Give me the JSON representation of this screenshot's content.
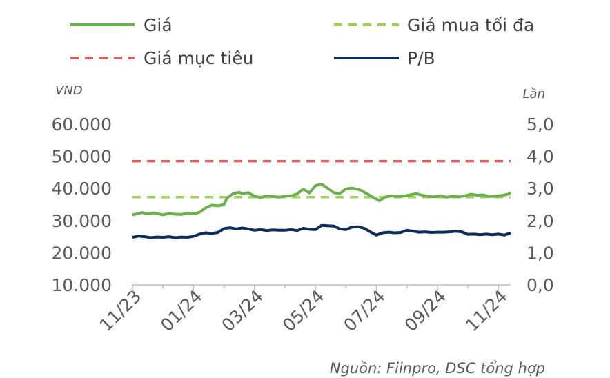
{
  "chart_data": {
    "type": "line",
    "legend": [
      {
        "label": "Giá",
        "color": "#6ab04c",
        "style": "solid"
      },
      {
        "label": "Giá mua tối đa",
        "color": "#9bd255",
        "style": "dashed"
      },
      {
        "label": "Giá mục tiêu",
        "color": "#e05a5a",
        "style": "dashed"
      },
      {
        "label": "P/B",
        "color": "#0d2b5c",
        "style": "solid"
      }
    ],
    "left_axis": {
      "unit": "VND",
      "min": 10000,
      "max": 60000,
      "ticks": [
        "60.000",
        "50.000",
        "40.000",
        "30.000",
        "20.000",
        "10.000"
      ],
      "tick_values": [
        60000,
        50000,
        40000,
        30000,
        20000,
        10000
      ]
    },
    "right_axis": {
      "unit": "Lần",
      "min": 0,
      "max": 5,
      "ticks": [
        "5,0",
        "4,0",
        "3,0",
        "2,0",
        "1,0",
        "0,0"
      ],
      "tick_values": [
        5,
        4,
        3,
        2,
        1,
        0
      ]
    },
    "x_labels": [
      "11/23",
      "01/24",
      "03/24",
      "05/24",
      "07/24",
      "09/24",
      "11/24"
    ],
    "source": "Nguồn: Fiinpro, DSC tổng hợp",
    "series": [
      {
        "name": "Giá",
        "axis": "left",
        "x": [
          0,
          0.2,
          0.3,
          0.5,
          0.7,
          0.9,
          1.0,
          1.2,
          1.4,
          1.6,
          1.8,
          2.0,
          2.2,
          2.4,
          2.6,
          2.8,
          3.0,
          3.1,
          3.3,
          3.5,
          3.6,
          3.8,
          4.0,
          4.2,
          4.4,
          4.6,
          4.8,
          5.0,
          5.2,
          5.4,
          5.6,
          5.8,
          6.0,
          6.2,
          6.4,
          6.6,
          6.8,
          7.0,
          7.2,
          7.4,
          7.5,
          7.7,
          7.9,
          8.1,
          8.3,
          8.5,
          8.7,
          8.9,
          9.1,
          9.3,
          9.5,
          9.7,
          9.9,
          10.1,
          10.3,
          10.5,
          10.7,
          10.9,
          11.1,
          11.3,
          11.5,
          11.7,
          11.9,
          12.1,
          12.3,
          12.4
        ],
        "values": [
          31800,
          32200,
          32500,
          32100,
          32400,
          32000,
          31800,
          32200,
          32000,
          31900,
          32300,
          32100,
          32600,
          34000,
          34800,
          34600,
          35000,
          37000,
          38400,
          38800,
          38300,
          38700,
          37600,
          37200,
          37700,
          37500,
          37300,
          37600,
          37700,
          38300,
          39800,
          38600,
          40900,
          41300,
          40100,
          38700,
          38400,
          39900,
          40100,
          39700,
          39400,
          38300,
          37200,
          36200,
          37400,
          37700,
          37500,
          37600,
          38000,
          38400,
          37900,
          37500,
          37400,
          37700,
          37300,
          37600,
          37400,
          37700,
          38200,
          37900,
          38000,
          37500,
          37600,
          37800,
          38200,
          38700
        ]
      },
      {
        "name": "Giá mua tối đa",
        "axis": "left",
        "x": [
          0,
          12.4
        ],
        "values": [
          37300,
          37300
        ]
      },
      {
        "name": "Giá mục tiêu",
        "axis": "left",
        "x": [
          0,
          12.4
        ],
        "values": [
          48500,
          48500
        ]
      },
      {
        "name": "P/B",
        "axis": "right",
        "x": [
          0,
          0.2,
          0.4,
          0.6,
          0.8,
          1.0,
          1.2,
          1.4,
          1.6,
          1.8,
          2.0,
          2.2,
          2.4,
          2.6,
          2.8,
          3.0,
          3.2,
          3.4,
          3.6,
          3.8,
          4.0,
          4.2,
          4.4,
          4.6,
          4.8,
          5.0,
          5.2,
          5.4,
          5.6,
          5.8,
          6.0,
          6.2,
          6.4,
          6.6,
          6.8,
          7.0,
          7.2,
          7.4,
          7.6,
          7.8,
          8.0,
          8.2,
          8.4,
          8.6,
          8.8,
          9.0,
          9.2,
          9.4,
          9.6,
          9.8,
          10.0,
          10.2,
          10.4,
          10.6,
          10.8,
          11.0,
          11.2,
          11.4,
          11.6,
          11.8,
          12.0,
          12.2,
          12.4
        ],
        "values": [
          1.48,
          1.52,
          1.5,
          1.47,
          1.49,
          1.48,
          1.5,
          1.47,
          1.49,
          1.48,
          1.51,
          1.58,
          1.62,
          1.6,
          1.63,
          1.75,
          1.78,
          1.74,
          1.77,
          1.74,
          1.7,
          1.72,
          1.69,
          1.71,
          1.7,
          1.7,
          1.72,
          1.69,
          1.76,
          1.73,
          1.72,
          1.85,
          1.84,
          1.83,
          1.74,
          1.72,
          1.8,
          1.81,
          1.76,
          1.65,
          1.55,
          1.62,
          1.64,
          1.62,
          1.63,
          1.7,
          1.67,
          1.64,
          1.65,
          1.63,
          1.64,
          1.64,
          1.65,
          1.67,
          1.65,
          1.57,
          1.58,
          1.56,
          1.58,
          1.56,
          1.58,
          1.55,
          1.62
        ]
      }
    ]
  }
}
